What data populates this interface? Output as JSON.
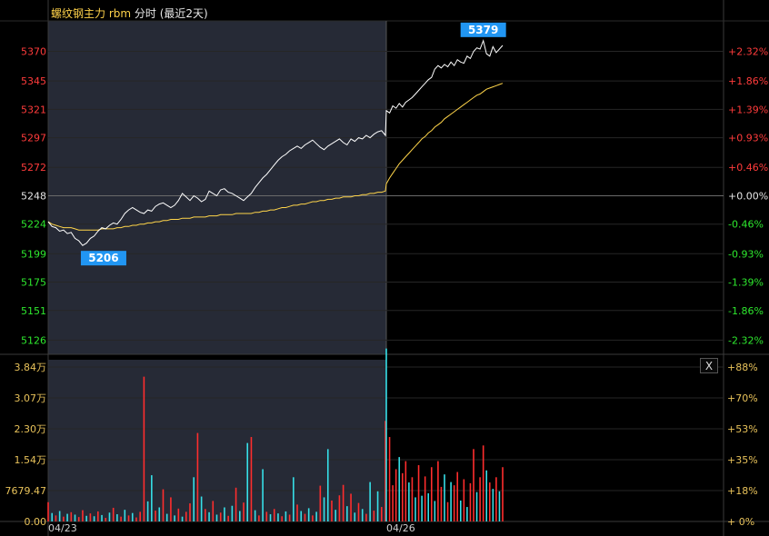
{
  "title": {
    "symbol": "螺纹钢主力 rbm",
    "mode": "分时 (最近2天)"
  },
  "close_label": "X",
  "chart_data": {
    "type": "line",
    "dates": [
      "04/23",
      "04/26"
    ],
    "base_price": 5248,
    "price_ylim": [
      5114,
      5395
    ],
    "price_ticks": [
      {
        "value": 5370,
        "label": "5370",
        "pct": "+2.32%"
      },
      {
        "value": 5345,
        "label": "5345",
        "pct": "+1.86%"
      },
      {
        "value": 5321,
        "label": "5321",
        "pct": "+1.39%"
      },
      {
        "value": 5297,
        "label": "5297",
        "pct": "+0.93%"
      },
      {
        "value": 5272,
        "label": "5272",
        "pct": "+0.46%"
      },
      {
        "value": 5248,
        "label": "5248",
        "pct": "+0.00%"
      },
      {
        "value": 5224,
        "label": "5224",
        "pct": "-0.46%"
      },
      {
        "value": 5199,
        "label": "5199",
        "pct": "-0.93%"
      },
      {
        "value": 5175,
        "label": "5175",
        "pct": "-1.39%"
      },
      {
        "value": 5151,
        "label": "5151",
        "pct": "-1.86%"
      },
      {
        "value": 5126,
        "label": "5126",
        "pct": "-2.32%"
      }
    ],
    "price_min_label": "5206",
    "price_max_label": "5379",
    "volume_ticks": [
      {
        "label": "3.84万",
        "pct": "+88%"
      },
      {
        "label": "3.07万",
        "pct": "+70%"
      },
      {
        "label": "2.30万",
        "pct": "+53%"
      },
      {
        "label": "1.54万",
        "pct": "+35%"
      },
      {
        "label": "7679.47",
        "pct": "+18%"
      },
      {
        "label": "0.00",
        "pct": "+ 0%"
      }
    ],
    "volume_ymax": 38400,
    "price_series": [
      5226,
      5222,
      5221,
      5218,
      5219,
      5216,
      5217,
      5212,
      5210,
      5206,
      5208,
      5212,
      5214,
      5218,
      5221,
      5220,
      5223,
      5225,
      5224,
      5228,
      5233,
      5236,
      5238,
      5236,
      5234,
      5233,
      5236,
      5235,
      5239,
      5241,
      5242,
      5240,
      5238,
      5240,
      5244,
      5250,
      5247,
      5244,
      5248,
      5246,
      5243,
      5245,
      5252,
      5250,
      5248,
      5253,
      5254,
      5251,
      5250,
      5248,
      5246,
      5244,
      5247,
      5250,
      5255,
      5259,
      5263,
      5266,
      5270,
      5274,
      5278,
      5281,
      5283,
      5286,
      5288,
      5290,
      5288,
      5291,
      5293,
      5295,
      5292,
      5289,
      5287,
      5290,
      5292,
      5294,
      5296,
      5293,
      5291,
      5296,
      5294,
      5297,
      5296,
      5299,
      5297,
      5300,
      5302,
      5303,
      5299,
      5320,
      5318,
      5324,
      5322,
      5326,
      5323,
      5327,
      5329,
      5331,
      5334,
      5337,
      5340,
      5343,
      5346,
      5348,
      5355,
      5358,
      5356,
      5359,
      5357,
      5361,
      5358,
      5363,
      5361,
      5360,
      5366,
      5364,
      5370,
      5373,
      5372,
      5379,
      5368,
      5366,
      5374,
      5369,
      5372,
      5375
    ],
    "avg_series": [
      5226,
      5224,
      5223,
      5222,
      5221,
      5221,
      5221,
      5220,
      5219,
      5219,
      5219,
      5219,
      5219,
      5219,
      5220,
      5220,
      5220,
      5220,
      5221,
      5221,
      5222,
      5222,
      5223,
      5223,
      5224,
      5224,
      5225,
      5225,
      5226,
      5226,
      5227,
      5227,
      5228,
      5228,
      5228,
      5229,
      5229,
      5229,
      5230,
      5230,
      5230,
      5230,
      5231,
      5231,
      5231,
      5232,
      5232,
      5232,
      5232,
      5233,
      5233,
      5233,
      5233,
      5233,
      5234,
      5234,
      5235,
      5235,
      5236,
      5236,
      5237,
      5238,
      5238,
      5239,
      5240,
      5240,
      5241,
      5241,
      5242,
      5243,
      5243,
      5244,
      5244,
      5245,
      5245,
      5246,
      5246,
      5247,
      5247,
      5247,
      5248,
      5248,
      5249,
      5249,
      5250,
      5250,
      5251,
      5251,
      5252,
      5258,
      5263,
      5267,
      5271,
      5275,
      5278,
      5281,
      5284,
      5287,
      5290,
      5293,
      5296,
      5298,
      5301,
      5303,
      5306,
      5308,
      5310,
      5313,
      5315,
      5317,
      5319,
      5321,
      5323,
      5325,
      5327,
      5329,
      5331,
      5333,
      5334,
      5336,
      5338,
      5339,
      5340,
      5341,
      5342,
      5343
    ],
    "volume_series": [
      [
        4800,
        1
      ],
      [
        2100,
        -1
      ],
      [
        1500,
        1
      ],
      [
        2600,
        -1
      ],
      [
        1200,
        1
      ],
      [
        1900,
        -1
      ],
      [
        2300,
        1
      ],
      [
        1700,
        -1
      ],
      [
        1100,
        1
      ],
      [
        2800,
        1
      ],
      [
        1400,
        -1
      ],
      [
        2000,
        1
      ],
      [
        1300,
        -1
      ],
      [
        2500,
        1
      ],
      [
        1600,
        -1
      ],
      [
        900,
        1
      ],
      [
        2200,
        -1
      ],
      [
        3400,
        1
      ],
      [
        1800,
        -1
      ],
      [
        1200,
        1
      ],
      [
        2900,
        -1
      ],
      [
        1500,
        1
      ],
      [
        2100,
        -1
      ],
      [
        1000,
        1
      ],
      [
        2400,
        1
      ],
      [
        36000,
        1
      ],
      [
        5000,
        -1
      ],
      [
        11500,
        -1
      ],
      [
        2700,
        1
      ],
      [
        3500,
        -1
      ],
      [
        8000,
        1
      ],
      [
        1900,
        -1
      ],
      [
        6000,
        1
      ],
      [
        1500,
        -1
      ],
      [
        3200,
        1
      ],
      [
        1200,
        -1
      ],
      [
        2400,
        1
      ],
      [
        4500,
        1
      ],
      [
        11000,
        -1
      ],
      [
        22000,
        1
      ],
      [
        6200,
        -1
      ],
      [
        3100,
        1
      ],
      [
        2300,
        -1
      ],
      [
        5100,
        1
      ],
      [
        1700,
        -1
      ],
      [
        2200,
        1
      ],
      [
        3500,
        -1
      ],
      [
        1400,
        1
      ],
      [
        3900,
        -1
      ],
      [
        8400,
        1
      ],
      [
        2600,
        -1
      ],
      [
        4700,
        1
      ],
      [
        19500,
        -1
      ],
      [
        21000,
        1
      ],
      [
        2800,
        -1
      ],
      [
        1500,
        1
      ],
      [
        13000,
        -1
      ],
      [
        2400,
        1
      ],
      [
        1800,
        -1
      ],
      [
        3100,
        1
      ],
      [
        2000,
        -1
      ],
      [
        1300,
        1
      ],
      [
        2500,
        -1
      ],
      [
        1700,
        1
      ],
      [
        11000,
        -1
      ],
      [
        4200,
        1
      ],
      [
        2600,
        -1
      ],
      [
        1900,
        1
      ],
      [
        3300,
        -1
      ],
      [
        1500,
        1
      ],
      [
        2400,
        -1
      ],
      [
        8900,
        1
      ],
      [
        6000,
        -1
      ],
      [
        18000,
        -1
      ],
      [
        5200,
        1
      ],
      [
        2900,
        -1
      ],
      [
        6500,
        1
      ],
      [
        9100,
        1
      ],
      [
        3800,
        -1
      ],
      [
        6900,
        1
      ],
      [
        2200,
        -1
      ],
      [
        4600,
        1
      ],
      [
        3100,
        -1
      ],
      [
        1900,
        1
      ],
      [
        9800,
        -1
      ],
      [
        2700,
        1
      ],
      [
        7500,
        -1
      ],
      [
        3600,
        1
      ],
      [
        25000,
        1
      ],
      [
        43000,
        -1
      ],
      [
        21000,
        1
      ],
      [
        9000,
        1
      ],
      [
        13000,
        1
      ],
      [
        16000,
        -1
      ],
      [
        12000,
        1
      ],
      [
        15000,
        1
      ],
      [
        9700,
        -1
      ],
      [
        11000,
        1
      ],
      [
        6000,
        -1
      ],
      [
        14000,
        1
      ],
      [
        6400,
        -1
      ],
      [
        11200,
        1
      ],
      [
        7000,
        -1
      ],
      [
        13500,
        1
      ],
      [
        5100,
        -1
      ],
      [
        15000,
        1
      ],
      [
        8600,
        1
      ],
      [
        11700,
        -1
      ],
      [
        4800,
        1
      ],
      [
        9800,
        -1
      ],
      [
        9000,
        1
      ],
      [
        12300,
        1
      ],
      [
        5200,
        -1
      ],
      [
        10500,
        1
      ],
      [
        3600,
        -1
      ],
      [
        9500,
        1
      ],
      [
        18000,
        1
      ],
      [
        7300,
        -1
      ],
      [
        11000,
        1
      ],
      [
        18900,
        1
      ],
      [
        12700,
        -1
      ],
      [
        9700,
        1
      ],
      [
        8100,
        -1
      ],
      [
        11000,
        1
      ],
      [
        7500,
        -1
      ],
      [
        13500,
        1
      ]
    ]
  }
}
